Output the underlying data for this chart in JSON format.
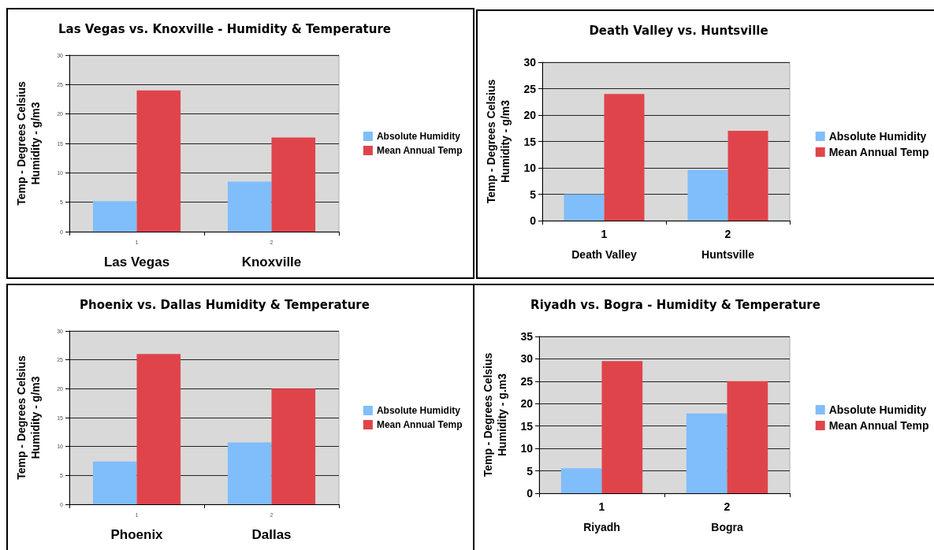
{
  "chart_data": [
    {
      "type": "bar",
      "title": "Las Vegas vs. Knoxville - Humidity & Temperature",
      "ylabel": "Temp - Degrees Celsius\nHumidity - g/m3",
      "categories": [
        "1",
        "2"
      ],
      "series": [
        {
          "name": "Absolute Humidity",
          "color": "#80bdfb",
          "values": [
            5.2,
            8.5
          ]
        },
        {
          "name": "Mean Annual Temp",
          "color": "#e0444b",
          "values": [
            24,
            16
          ]
        }
      ],
      "annotations": [
        "Las Vegas",
        "Knoxville"
      ],
      "ylim": [
        0,
        30
      ],
      "yticks": [
        0,
        5,
        10,
        15,
        20,
        25,
        30
      ],
      "grid": "y",
      "legend": "right"
    },
    {
      "type": "bar",
      "title": "Death Valley vs. Huntsville",
      "ylabel": "Temp - Degrees Celsius\nHumidity - g/m3",
      "categories": [
        "1",
        "2"
      ],
      "series": [
        {
          "name": "Absolute Humidity",
          "color": "#80bdfb",
          "values": [
            5,
            9.6
          ]
        },
        {
          "name": "Mean Annual Temp",
          "color": "#e0444b",
          "values": [
            24,
            17
          ]
        }
      ],
      "annotations": [
        "Death Valley",
        "Huntsville"
      ],
      "ylim": [
        0,
        30
      ],
      "yticks": [
        0,
        5,
        10,
        15,
        20,
        25,
        30
      ],
      "grid": "y",
      "legend": "right"
    },
    {
      "type": "bar",
      "title": "Phoenix vs. Dallas Humidity & Temperature",
      "ylabel": "Temp - Degrees Celsius\nHumidity - g/m3",
      "categories": [
        "1",
        "2"
      ],
      "series": [
        {
          "name": "Absolute Humidity",
          "color": "#80bdfb",
          "values": [
            7.4,
            10.7
          ]
        },
        {
          "name": "Mean Annual Temp",
          "color": "#e0444b",
          "values": [
            26,
            20
          ]
        }
      ],
      "annotations": [
        "Phoenix",
        "Dallas"
      ],
      "ylim": [
        0,
        30
      ],
      "yticks": [
        0,
        5,
        10,
        15,
        20,
        25,
        30
      ],
      "grid": "y",
      "legend": "right"
    },
    {
      "type": "bar",
      "title": "Riyadh vs. Bogra - Humidity & Temperature",
      "ylabel": "Temp - Degrees Celsius\nHumidity - g.m3",
      "categories": [
        "1",
        "2"
      ],
      "series": [
        {
          "name": "Absolute Humidity",
          "color": "#80bdfb",
          "values": [
            5.6,
            17.8
          ]
        },
        {
          "name": "Mean Annual Temp",
          "color": "#e0444b",
          "values": [
            29.5,
            25
          ]
        }
      ],
      "annotations": [
        "Riyadh",
        "Bogra"
      ],
      "ylim": [
        0,
        35
      ],
      "yticks": [
        0,
        5,
        10,
        15,
        20,
        25,
        30,
        35
      ],
      "grid": "y",
      "legend": "right"
    }
  ]
}
